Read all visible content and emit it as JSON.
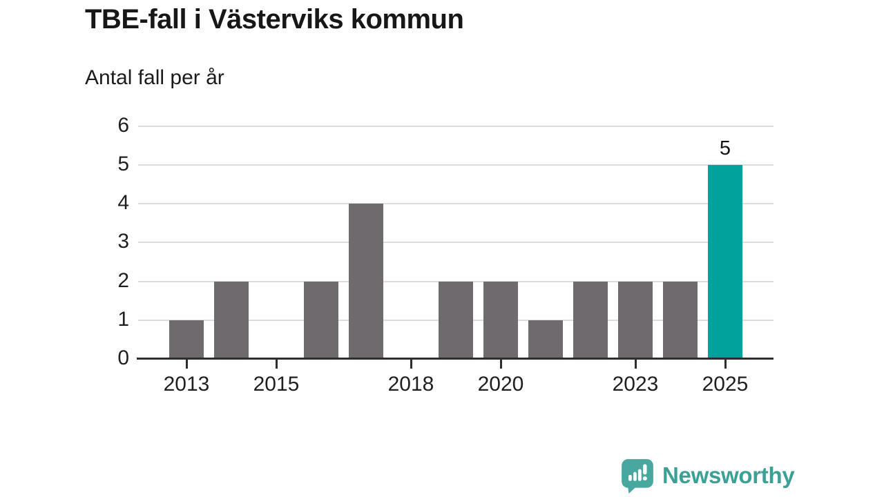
{
  "header": {
    "title": "TBE-fall i Västerviks kommun",
    "subtitle": "Antal fall per år"
  },
  "chart_data": {
    "type": "bar",
    "title": "TBE-fall i Västerviks kommun",
    "subtitle": "Antal fall per år",
    "categories": [
      2013,
      2014,
      2015,
      2016,
      2017,
      2018,
      2019,
      2020,
      2021,
      2022,
      2023,
      2024,
      2025
    ],
    "values": [
      1,
      2,
      0,
      2,
      4,
      0,
      2,
      2,
      1,
      2,
      2,
      2,
      5
    ],
    "highlight": {
      "index": 12,
      "year": 2025,
      "value": 5,
      "label": "5"
    },
    "yticks": [
      0,
      1,
      2,
      3,
      4,
      5,
      6
    ],
    "xticks": [
      2013,
      2015,
      2018,
      2020,
      2023,
      2025
    ],
    "ylim": [
      0,
      6
    ],
    "grid": true,
    "legend": "none",
    "xlabel": "",
    "ylabel": "Antal fall per år",
    "colors": {
      "bar": "#6E6A6E",
      "highlight": "#00A29B",
      "grid": "#DCDCDC",
      "axis": "#2E2E2E",
      "text": "#1A1A1A"
    }
  },
  "footer": {
    "brand": "Newsworthy",
    "brand_color": "#3BA096",
    "logo_icon": "newsworthy-speech-bubble-chart-icon",
    "logo_fill": "#48A79F"
  }
}
